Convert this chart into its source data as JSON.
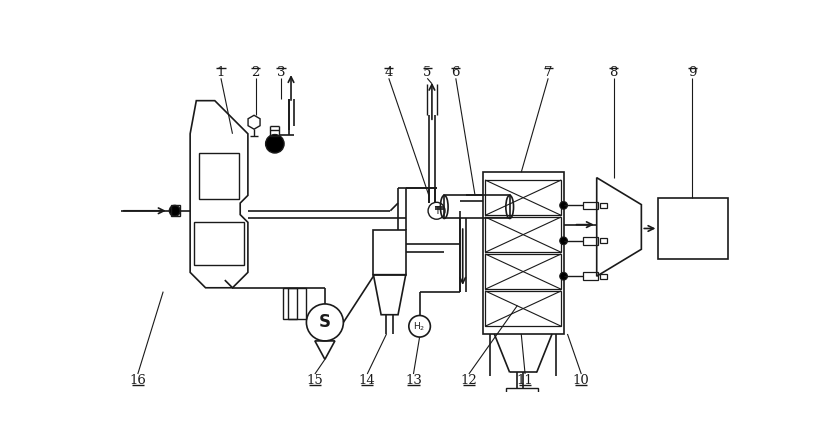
{
  "figsize": [
    8.27,
    4.41
  ],
  "dpi": 100,
  "bg_color": "#ffffff",
  "line_color": "#1a1a1a",
  "lw": 1.0
}
